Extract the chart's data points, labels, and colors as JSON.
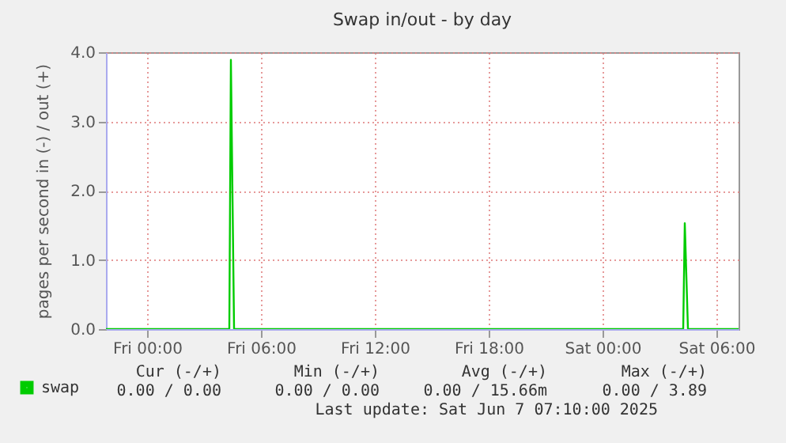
{
  "chart_data": {
    "type": "line",
    "title": "Swap in/out - by day",
    "ylabel": "pages per second in (-) / out (+)",
    "x": [
      "2025-06-05T21:50",
      "2025-06-06T04:20",
      "2025-06-06T04:25",
      "2025-06-06T04:35",
      "2025-06-07T04:15",
      "2025-06-07T04:20",
      "2025-06-07T04:30",
      "2025-06-07T07:10"
    ],
    "series": [
      {
        "name": "swap",
        "color": "#00cc00",
        "values": [
          0,
          0,
          3.89,
          0,
          0,
          1.53,
          0,
          0
        ]
      }
    ],
    "xlim": [
      "2025-06-05T21:50",
      "2025-06-07T07:10"
    ],
    "xticks": [
      {
        "value": "2025-06-06T00:00",
        "label": "Fri 00:00"
      },
      {
        "value": "2025-06-06T06:00",
        "label": "Fri 06:00"
      },
      {
        "value": "2025-06-06T12:00",
        "label": "Fri 12:00"
      },
      {
        "value": "2025-06-06T18:00",
        "label": "Fri 18:00"
      },
      {
        "value": "2025-06-07T00:00",
        "label": "Sat 00:00"
      },
      {
        "value": "2025-06-07T06:00",
        "label": "Sat 06:00"
      }
    ],
    "ylim": [
      0,
      4
    ],
    "yticks": [
      {
        "value": 0,
        "label": "0.0"
      },
      {
        "value": 1,
        "label": "1.0"
      },
      {
        "value": 2,
        "label": "2.0"
      },
      {
        "value": 3,
        "label": "3.0"
      },
      {
        "value": 4,
        "label": "4.0"
      }
    ],
    "grid": true,
    "legend": "bottom left",
    "annotations": [
      "Cur (-/+)",
      "Min (-/+)",
      "Avg (-/+)",
      "Max (-/+)",
      "0.00 /   0.00",
      "0.00 /   0.00",
      "0.00 / 15.66m",
      "0.00 /   3.89",
      "Last update: Sat Jun  7 07:10:00 2025"
    ]
  }
}
